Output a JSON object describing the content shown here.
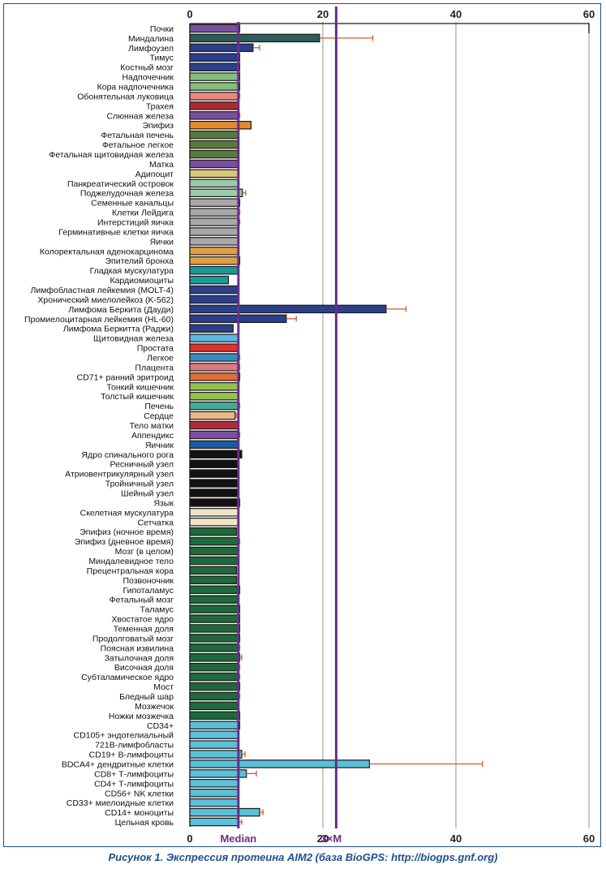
{
  "caption": "Рисунок 1. Экспрессия протеина AIM2 (база BioGPS: http://biogps.gnf.org)",
  "colors": {
    "median_line": "#6b2d8a",
    "threshold_line": "#6b2d8a",
    "grid": "#c8c8c8",
    "error_bar": "#d4582a",
    "median_label": "#6b2d8a",
    "threshold_label": "#6b2d8a"
  },
  "chart_data": {
    "type": "bar",
    "orientation": "horizontal",
    "xlim": [
      0,
      60
    ],
    "x_ticks": [
      0,
      20,
      40,
      60
    ],
    "grid": true,
    "median_label": "Median",
    "threshold_label": "3×M",
    "median_value": 7.3,
    "threshold_value": 22,
    "bars": [
      {
        "label": "Почки",
        "value": 7.5,
        "err": 0,
        "color": "#7b4fa0"
      },
      {
        "label": "Миндалина",
        "value": 19.5,
        "err": 8,
        "color": "#2e5c58"
      },
      {
        "label": "Лимфоузел",
        "value": 9.5,
        "err": 1,
        "color": "#2c3f8a"
      },
      {
        "label": "Тимус",
        "value": 7.5,
        "err": 0,
        "color": "#2c3f8a"
      },
      {
        "label": "Костный мозг",
        "value": 7.5,
        "err": 0,
        "color": "#2c3f8a"
      },
      {
        "label": "Надпочечник",
        "value": 7.5,
        "err": 0,
        "color": "#86bd7c"
      },
      {
        "label": "Кора надпочечника",
        "value": 7.5,
        "err": 0,
        "color": "#86bd7c"
      },
      {
        "label": "Обонятельная луковица",
        "value": 7.3,
        "err": 0.2,
        "color": "#e88a7a"
      },
      {
        "label": "Трахея",
        "value": 7.3,
        "err": 0,
        "color": "#b02a30"
      },
      {
        "label": "Слюнная железа",
        "value": 7.3,
        "err": 0.2,
        "color": "#7a4f9e"
      },
      {
        "label": "Эпифиз",
        "value": 9.2,
        "err": 0,
        "color": "#e88a2a"
      },
      {
        "label": "Фетальная печень",
        "value": 7.3,
        "err": 0,
        "color": "#5a7a3a"
      },
      {
        "label": "Фетальное легкое",
        "value": 7.3,
        "err": 0,
        "color": "#5a7a3a"
      },
      {
        "label": "Фетальная щитовидная железа",
        "value": 7.3,
        "err": 0,
        "color": "#5a7a3a"
      },
      {
        "label": "Матка",
        "value": 7.3,
        "err": 0,
        "color": "#7b4fa0"
      },
      {
        "label": "Адипоцит",
        "value": 7.3,
        "err": 0,
        "color": "#d8c87a"
      },
      {
        "label": "Панкреатический островок",
        "value": 7.3,
        "err": 0,
        "color": "#9acba8"
      },
      {
        "label": "Поджелудочная железа",
        "value": 7.9,
        "err": 0.5,
        "color": "#9acba8"
      },
      {
        "label": "Семенные канальцы",
        "value": 7.5,
        "err": 0,
        "color": "#a8a8a8"
      },
      {
        "label": "Клетки Лейдига",
        "value": 7.3,
        "err": 0.2,
        "color": "#a8a8a8"
      },
      {
        "label": "Интерстиций яичка",
        "value": 7.3,
        "err": 0.2,
        "color": "#a8a8a8"
      },
      {
        "label": "Герминативные клетки яичка",
        "value": 7.3,
        "err": 0,
        "color": "#a8a8a8"
      },
      {
        "label": "Яички",
        "value": 7.3,
        "err": 0,
        "color": "#a8a8a8"
      },
      {
        "label": "Колоректальная аденокарцинома",
        "value": 7.3,
        "err": 0,
        "color": "#e0a040"
      },
      {
        "label": "Эпителий бронха",
        "value": 7.5,
        "err": 0,
        "color": "#e0a040"
      },
      {
        "label": "Гладкая мускулатура",
        "value": 7.3,
        "err": 0,
        "color": "#1a9a98"
      },
      {
        "label": "Кардиомиоциты",
        "value": 5.8,
        "err": 0,
        "color": "#1a9a98"
      },
      {
        "label": "Лимфобластная лейкемия (MOLT-4)",
        "value": 7.3,
        "err": 0,
        "color": "#2c3f8a"
      },
      {
        "label": "Хронический миелолейкоз (K-562)",
        "value": 7.3,
        "err": 0,
        "color": "#2c3f8a"
      },
      {
        "label": "Лимфома Беркита (Дауди)",
        "value": 29.5,
        "err": 3,
        "color": "#2c3f8a"
      },
      {
        "label": "Промиелоцитарная лейкемия (HL-60)",
        "value": 14.5,
        "err": 1.5,
        "color": "#2c3f8a"
      },
      {
        "label": "Лимфома Беркитта (Раджи)",
        "value": 6.5,
        "err": 0,
        "color": "#2c3f8a"
      },
      {
        "label": "Щитовидная железа",
        "value": 7.3,
        "err": 0,
        "color": "#5ab8e0"
      },
      {
        "label": "Простата",
        "value": 7.3,
        "err": 0,
        "color": "#e03030"
      },
      {
        "label": "Легкое",
        "value": 7.3,
        "err": 0.2,
        "color": "#3a8ac0"
      },
      {
        "label": "Плацента",
        "value": 7.3,
        "err": 0.2,
        "color": "#e07a7a"
      },
      {
        "label": "CD71+ ранний эритроид",
        "value": 7.5,
        "err": 0,
        "color": "#e07030"
      },
      {
        "label": "Тонкий кишечник",
        "value": 7.3,
        "err": 0,
        "color": "#96c050"
      },
      {
        "label": "Толстый кишечник",
        "value": 7.3,
        "err": 0,
        "color": "#96c050"
      },
      {
        "label": "Печень",
        "value": 7.3,
        "err": 0.2,
        "color": "#4aaa9a"
      },
      {
        "label": "Сердце",
        "value": 6.8,
        "err": 0.2,
        "color": "#e8b888"
      },
      {
        "label": "Тело матки",
        "value": 7.3,
        "err": 0,
        "color": "#b02a40"
      },
      {
        "label": "Аппендикс",
        "value": 7.3,
        "err": 0.2,
        "color": "#7b4fa0"
      },
      {
        "label": "Яичник",
        "value": 7.3,
        "err": 0,
        "color": "#1a5aa0"
      },
      {
        "label": "Ядро спинального рога",
        "value": 7.8,
        "err": 0,
        "color": "#111111"
      },
      {
        "label": "Ресничный узел",
        "value": 7.3,
        "err": 0,
        "color": "#111111"
      },
      {
        "label": "Атриовентрикулярный узел",
        "value": 7.3,
        "err": 0,
        "color": "#111111"
      },
      {
        "label": "Тройничный узел",
        "value": 7.3,
        "err": 0,
        "color": "#111111"
      },
      {
        "label": "Шейный узел",
        "value": 7.3,
        "err": 0,
        "color": "#111111"
      },
      {
        "label": "Язык",
        "value": 7.5,
        "err": 0,
        "color": "#111111"
      },
      {
        "label": "Скелетная мускулатура",
        "value": 7.3,
        "err": 0,
        "color": "#f0e4c8"
      },
      {
        "label": "Сетчатка",
        "value": 7.3,
        "err": 0,
        "color": "#f0e4c8"
      },
      {
        "label": "Эпифиз (ночное время)",
        "value": 7.0,
        "err": 0.2,
        "color": "#1e6a3a"
      },
      {
        "label": "Эпифиз (дневное время)",
        "value": 7.3,
        "err": 0.2,
        "color": "#1e6a3a"
      },
      {
        "label": "Мозг (в целом)",
        "value": 7.3,
        "err": 0,
        "color": "#1e6a3a"
      },
      {
        "label": "Миндалевидное тело",
        "value": 7.3,
        "err": 0,
        "color": "#1e6a3a"
      },
      {
        "label": "Прецентральная кора",
        "value": 7.0,
        "err": 0,
        "color": "#1e6a3a"
      },
      {
        "label": "Позвоночник",
        "value": 7.0,
        "err": 0.2,
        "color": "#1e6a3a"
      },
      {
        "label": "Гипоталамус",
        "value": 7.5,
        "err": 0,
        "color": "#1e6a3a"
      },
      {
        "label": "Фетальный мозг",
        "value": 7.3,
        "err": 0,
        "color": "#1e6a3a"
      },
      {
        "label": "Таламус",
        "value": 7.5,
        "err": 0,
        "color": "#1e6a3a"
      },
      {
        "label": "Хвостатое ядро",
        "value": 7.5,
        "err": 0,
        "color": "#1e6a3a"
      },
      {
        "label": "Теменная доля",
        "value": 7.5,
        "err": 0,
        "color": "#1e6a3a"
      },
      {
        "label": "Продолговатый мозг",
        "value": 7.5,
        "err": 0,
        "color": "#1e6a3a"
      },
      {
        "label": "Поясная извилина",
        "value": 7.3,
        "err": 0.2,
        "color": "#1e6a3a"
      },
      {
        "label": "Затылочная доля",
        "value": 7.5,
        "err": 0.3,
        "color": "#1e6a3a"
      },
      {
        "label": "Височная доля",
        "value": 7.3,
        "err": 0.2,
        "color": "#1e6a3a"
      },
      {
        "label": "Субталамическое ядро",
        "value": 7.3,
        "err": 0.2,
        "color": "#1e6a3a"
      },
      {
        "label": "Мост",
        "value": 7.5,
        "err": 0,
        "color": "#1e6a3a"
      },
      {
        "label": "Бледный шар",
        "value": 7.3,
        "err": 0.2,
        "color": "#1e6a3a"
      },
      {
        "label": "Мозжечок",
        "value": 7.3,
        "err": 0,
        "color": "#1e6a3a"
      },
      {
        "label": "Ножки мозжечка",
        "value": 7.5,
        "err": 0,
        "color": "#1e6a3a"
      },
      {
        "label": "CD34+",
        "value": 7.5,
        "err": 0,
        "color": "#5bc0d8"
      },
      {
        "label": "CD105+ эндотелиальный",
        "value": 7.3,
        "err": 0,
        "color": "#5bc0d8"
      },
      {
        "label": "721B-лимфобласты",
        "value": 7.3,
        "err": 0,
        "color": "#5bc0d8"
      },
      {
        "label": "CD19+ B-лимфоциты",
        "value": 7.8,
        "err": 0.5,
        "color": "#5bc0d8"
      },
      {
        "label": "BDCA4+ дендритные клетки",
        "value": 27.0,
        "err": 17,
        "color": "#5bc0d8"
      },
      {
        "label": "CD8+ Т-лимфоциты",
        "value": 8.5,
        "err": 1.5,
        "color": "#5bc0d8"
      },
      {
        "label": "CD4+ Т-лимфоциты",
        "value": 7.3,
        "err": 0,
        "color": "#5bc0d8"
      },
      {
        "label": "CD56+ NK клетки",
        "value": 7.3,
        "err": 0,
        "color": "#5bc0d8"
      },
      {
        "label": "CD33+ миелоидные клетки",
        "value": 7.3,
        "err": 0,
        "color": "#5bc0d8"
      },
      {
        "label": "CD14+ моноциты",
        "value": 10.5,
        "err": 0.5,
        "color": "#5bc0d8"
      },
      {
        "label": "Цельная кровь",
        "value": 7.3,
        "err": 0.5,
        "color": "#5bc0d8"
      }
    ]
  }
}
